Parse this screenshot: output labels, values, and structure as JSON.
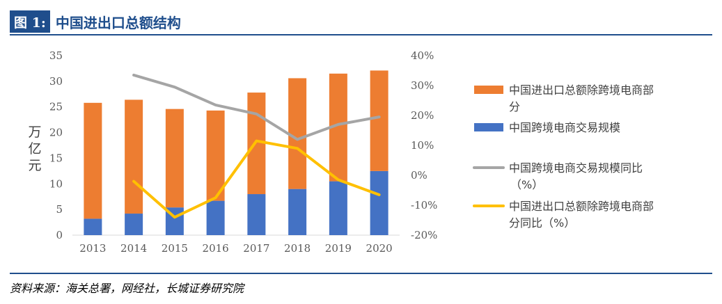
{
  "header": {
    "figure_label": "图 1:",
    "title": "中国进出口总额结构"
  },
  "source": "资料来源：海关总署，网经社，长城证券研究院",
  "chart_data": {
    "type": "bar",
    "stacked": true,
    "categories": [
      "2013",
      "2014",
      "2015",
      "2016",
      "2017",
      "2018",
      "2019",
      "2020"
    ],
    "ylabel": "万亿元",
    "ylim": [
      0,
      35
    ],
    "yticks": [
      "0",
      "5",
      "10",
      "15",
      "20",
      "25",
      "30",
      "35"
    ],
    "y2lim": [
      -20,
      40
    ],
    "y2ticks": [
      "-20%",
      "-10%",
      "0%",
      "10%",
      "20%",
      "30%",
      "40%"
    ],
    "grid": false,
    "legend_position": "right",
    "series": [
      {
        "name": "中国跨境电商交易规模",
        "kind": "bar",
        "axis": "left",
        "color": "#4472c4",
        "values": [
          3.2,
          4.2,
          5.4,
          6.7,
          8.0,
          9.0,
          10.5,
          12.5
        ]
      },
      {
        "name": "中国进出口总额除跨境电商部分",
        "kind": "bar",
        "axis": "left",
        "color": "#ed7d31",
        "values": [
          22.6,
          22.2,
          19.2,
          17.6,
          19.8,
          21.6,
          21.0,
          19.6
        ]
      },
      {
        "name": "中国跨境电商交易规模同比（%）",
        "kind": "line",
        "axis": "right",
        "color": "#a5a5a5",
        "values": [
          null,
          33.5,
          29.5,
          23.5,
          20.5,
          12.0,
          17.0,
          19.5
        ]
      },
      {
        "name": "中国进出口总额除跨境电商部分同比（%）",
        "kind": "line",
        "axis": "right",
        "color": "#ffc000",
        "values": [
          null,
          -2.0,
          -14.0,
          -7.5,
          11.5,
          9.0,
          -1.5,
          -6.5
        ]
      }
    ],
    "legend": [
      {
        "series": 1,
        "lines": [
          "中国进出口总额除跨境电商部",
          "分"
        ]
      },
      {
        "series": 0,
        "lines": [
          "中国跨境电商交易规模"
        ]
      },
      {
        "series": 2,
        "lines": [
          "中国跨境电商交易规模同比",
          "（%）"
        ]
      },
      {
        "series": 3,
        "lines": [
          "中国进出口总额除跨境电商部",
          "分同比（%）"
        ]
      }
    ]
  }
}
